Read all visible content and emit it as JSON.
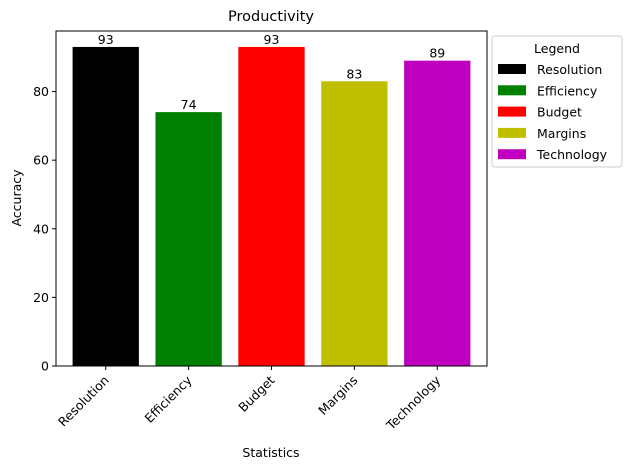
{
  "chart_data": {
    "type": "bar",
    "title": "Productivity",
    "xlabel": "Statistics",
    "ylabel": "Accuracy",
    "categories": [
      "Resolution",
      "Efficiency",
      "Budget",
      "Margins",
      "Technology"
    ],
    "values": [
      93,
      74,
      93,
      83,
      89
    ],
    "colors": [
      "#000000",
      "#008000",
      "#ff0000",
      "#bfbf00",
      "#bf00bf"
    ],
    "ylim": [
      0,
      97.65
    ],
    "yticks": [
      0,
      20,
      40,
      60,
      80
    ],
    "grid": false,
    "legend": {
      "title": "Legend",
      "placement": "outside-top-right",
      "entries": [
        "Resolution",
        "Efficiency",
        "Budget",
        "Margins",
        "Technology"
      ]
    }
  }
}
